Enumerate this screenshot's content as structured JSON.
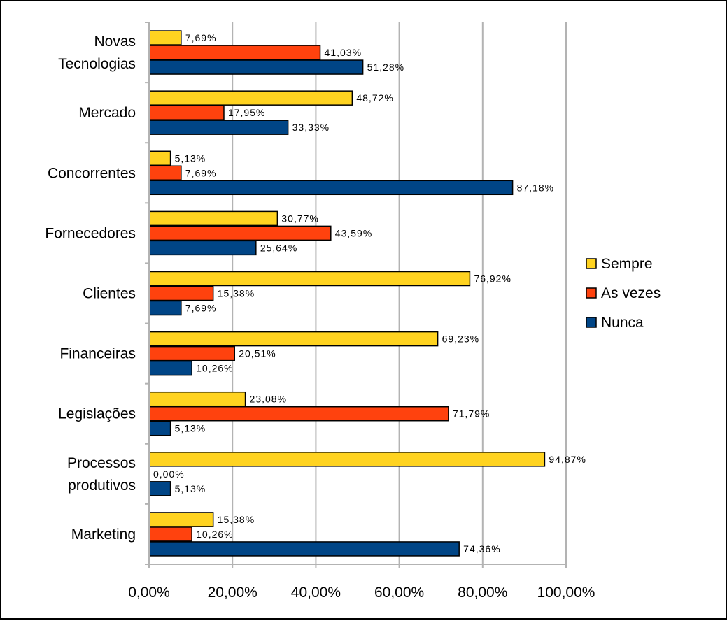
{
  "chart_data": {
    "type": "bar",
    "orientation": "horizontal",
    "categories": [
      "Novas Tecnologias",
      "Mercado",
      "Concorrentes",
      "Fornecedores",
      "Clientes",
      "Financeiras",
      "Legislações",
      "Processos produtivos",
      "Marketing"
    ],
    "category_lines": [
      [
        "Novas",
        "Tecnologias"
      ],
      [
        "Mercado"
      ],
      [
        "Concorrentes"
      ],
      [
        "Fornecedores"
      ],
      [
        "Clientes"
      ],
      [
        "Financeiras"
      ],
      [
        "Legislações"
      ],
      [
        "Processos",
        "produtivos"
      ],
      [
        "Marketing"
      ]
    ],
    "series": [
      {
        "name": "Sempre",
        "color": "#FFD320",
        "values": [
          7.69,
          48.72,
          5.13,
          30.77,
          76.92,
          69.23,
          23.08,
          94.87,
          15.38
        ],
        "labels": [
          "7,69%",
          "48,72%",
          "5,13%",
          "30,77%",
          "76,92%",
          "69,23%",
          "23,08%",
          "94,87%",
          "15,38%"
        ]
      },
      {
        "name": "As vezes",
        "color": "#FF420E",
        "values": [
          41.03,
          17.95,
          7.69,
          43.59,
          15.38,
          20.51,
          71.79,
          0.0,
          10.26
        ],
        "labels": [
          "41,03%",
          "17,95%",
          "7,69%",
          "43,59%",
          "15,38%",
          "20,51%",
          "71,79%",
          "0,00%",
          "10,26%"
        ]
      },
      {
        "name": "Nunca",
        "color": "#004586",
        "values": [
          51.28,
          33.33,
          87.18,
          25.64,
          7.69,
          10.26,
          5.13,
          5.13,
          74.36
        ],
        "labels": [
          "51,28%",
          "33,33%",
          "87,18%",
          "25,64%",
          "7,69%",
          "10,26%",
          "5,13%",
          "5,13%",
          "74,36%"
        ]
      }
    ],
    "xlim": [
      0,
      100
    ],
    "xticks": [
      0,
      20,
      40,
      60,
      80,
      100
    ],
    "xtick_labels": [
      "0,00%",
      "20,00%",
      "40,00%",
      "60,00%",
      "80,00%",
      "100,00%"
    ],
    "grid": "vertical",
    "legend": "right",
    "title": "",
    "xlabel": "",
    "ylabel": ""
  }
}
